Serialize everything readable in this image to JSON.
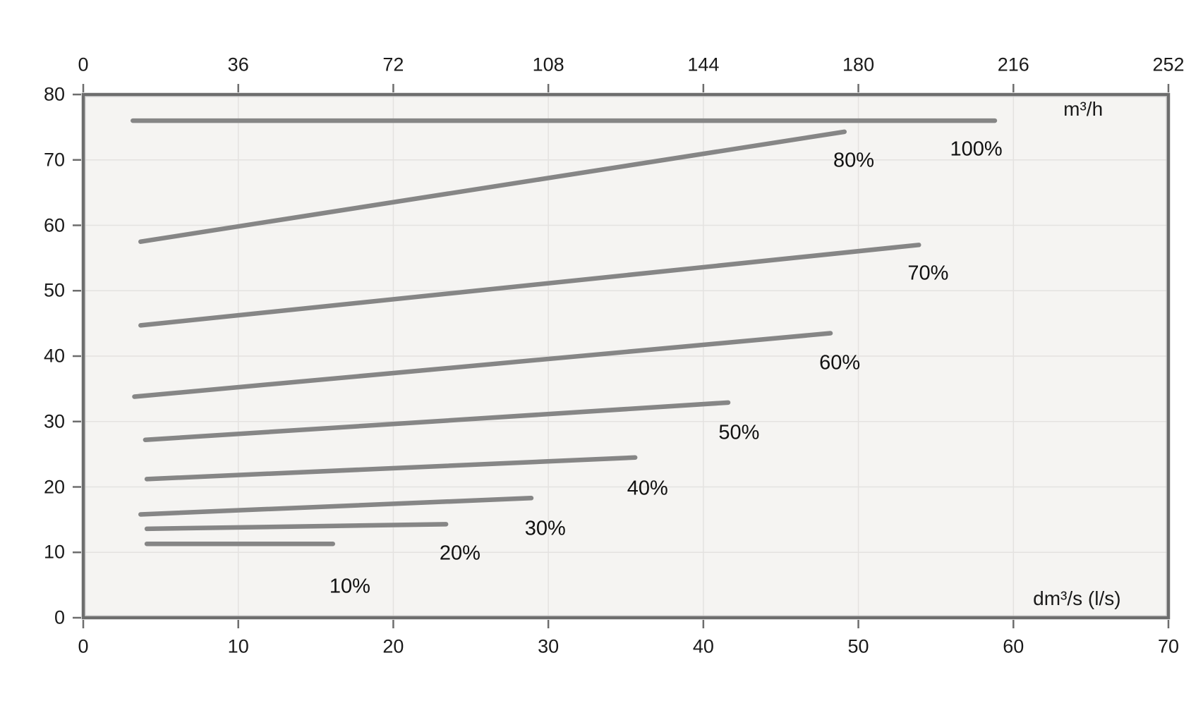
{
  "chart_data": {
    "type": "line",
    "title": "",
    "x_axis_bottom": {
      "label": "dm³/s (l/s)",
      "ticks": [
        0,
        10,
        20,
        30,
        40,
        50,
        60,
        70
      ],
      "range": [
        0,
        70
      ]
    },
    "x_axis_top": {
      "label": "m³/h",
      "ticks": [
        0,
        36,
        72,
        108,
        144,
        180,
        216,
        252
      ],
      "range": [
        0,
        252
      ]
    },
    "y_axis": {
      "label": "",
      "ticks": [
        0,
        10,
        20,
        30,
        40,
        50,
        60,
        70,
        80
      ],
      "range": [
        0,
        80
      ]
    },
    "grid": true,
    "legend": "none",
    "series": [
      {
        "name": "100%",
        "points": [
          [
            3.2,
            76.0
          ],
          [
            58.8,
            76.0
          ]
        ]
      },
      {
        "name": "80%",
        "points": [
          [
            3.7,
            57.5
          ],
          [
            49.1,
            74.3
          ]
        ]
      },
      {
        "name": "70%",
        "points": [
          [
            3.7,
            44.7
          ],
          [
            53.9,
            57.0
          ]
        ]
      },
      {
        "name": "60%",
        "points": [
          [
            3.3,
            33.8
          ],
          [
            48.2,
            43.5
          ]
        ]
      },
      {
        "name": "50%",
        "points": [
          [
            4.0,
            27.2
          ],
          [
            41.6,
            32.9
          ]
        ]
      },
      {
        "name": "40%",
        "points": [
          [
            4.1,
            21.2
          ],
          [
            35.6,
            24.5
          ]
        ]
      },
      {
        "name": "30%",
        "points": [
          [
            3.7,
            15.8
          ],
          [
            28.9,
            18.3
          ]
        ]
      },
      {
        "name": "20%",
        "points": [
          [
            4.1,
            13.6
          ],
          [
            23.4,
            14.3
          ]
        ]
      },
      {
        "name": "10%",
        "points": [
          [
            4.1,
            11.3
          ],
          [
            16.1,
            11.3
          ]
        ]
      }
    ],
    "annotations": [
      {
        "text": "10%",
        "x": 17.2,
        "y": 4.7,
        "kind": "series-label"
      },
      {
        "text": "20%",
        "x": 24.3,
        "y": 9.8,
        "kind": "series-label"
      },
      {
        "text": "30%",
        "x": 29.8,
        "y": 13.6,
        "kind": "series-label"
      },
      {
        "text": "40%",
        "x": 36.4,
        "y": 19.7,
        "kind": "series-label"
      },
      {
        "text": "50%",
        "x": 42.3,
        "y": 28.2,
        "kind": "series-label"
      },
      {
        "text": "60%",
        "x": 48.8,
        "y": 38.9,
        "kind": "series-label"
      },
      {
        "text": "70%",
        "x": 54.5,
        "y": 52.6,
        "kind": "series-label"
      },
      {
        "text": "80%",
        "x": 49.7,
        "y": 69.9,
        "kind": "series-label"
      },
      {
        "text": "100%",
        "x": 57.6,
        "y": 71.6,
        "kind": "series-label"
      },
      {
        "text": "m³/h",
        "x": 64.5,
        "y": 77.7,
        "kind": "unit"
      },
      {
        "text": "dm³/s (l/s)",
        "x": 64.1,
        "y": 2.9,
        "kind": "unit"
      }
    ],
    "colors": {
      "line": "#868686",
      "plot_bg": "#f5f4f2",
      "grid": "#e4e2e0",
      "border": "#6d6d6d",
      "inner_border": "#c9c9c9",
      "tick": "#6d6d6d"
    }
  }
}
